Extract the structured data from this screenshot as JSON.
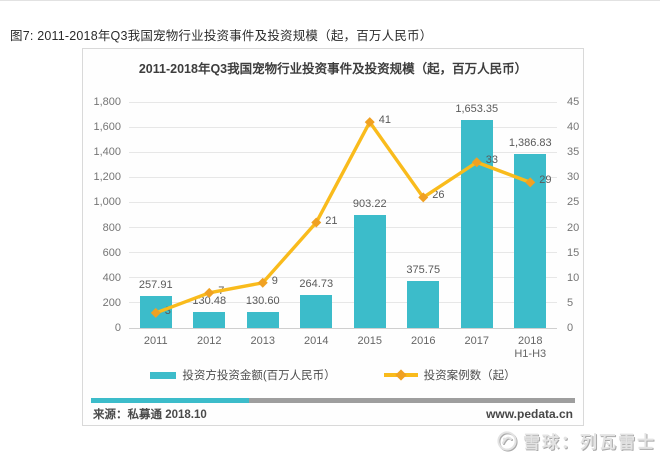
{
  "page": {
    "caption": "图7: 2011-2018年Q3我国宠物行业投资事件及投资规模（起，百万人民币）"
  },
  "footer": {
    "source": "来源：私募通 2018.10",
    "website": "www.pedata.cn"
  },
  "watermark": {
    "icon": "xueqiu-logo",
    "text": "雪球：列瓦雷士"
  },
  "chart_data": {
    "type": "combo-bar-line",
    "title": "2011-2018年Q3我国宠物行业投资事件及投资规模（起，百万人民币）",
    "categories": [
      "2011",
      "2012",
      "2013",
      "2014",
      "2015",
      "2016",
      "2017",
      "2018\nH1-H3"
    ],
    "series": [
      {
        "name": "投资方投资金额(百万人民币）",
        "type": "bar",
        "axis": "left",
        "color": "#3cbcca",
        "values": [
          257.91,
          130.48,
          130.6,
          264.73,
          903.22,
          375.75,
          1653.35,
          1386.83
        ],
        "labels": [
          "257.91",
          "130.48",
          "130.60",
          "264.73",
          "903.22",
          "375.75",
          "1,653.35",
          "1,386.83"
        ]
      },
      {
        "name": "投资案例数（起）",
        "type": "line",
        "axis": "right",
        "color": "#f9bb1c",
        "marker": "diamond",
        "marker_color": "#f0a122",
        "values": [
          3,
          7,
          9,
          21,
          41,
          26,
          33,
          29
        ],
        "labels": [
          "3",
          "7",
          "9",
          "21",
          "41",
          "26",
          "33",
          "29"
        ]
      }
    ],
    "left_axis": {
      "min": 0,
      "max": 1800,
      "step": 200,
      "ticks": [
        "0",
        "200",
        "400",
        "600",
        "800",
        "1,000",
        "1,200",
        "1,400",
        "1,600",
        "1,800"
      ]
    },
    "right_axis": {
      "min": 0,
      "max": 45,
      "step": 5,
      "ticks": [
        "0",
        "5",
        "10",
        "15",
        "20",
        "25",
        "30",
        "35",
        "40",
        "45"
      ]
    },
    "grid": true,
    "legend_position": "bottom",
    "divider_colors": {
      "teal": "#3cbcca",
      "gray": "#9e9e9e"
    }
  }
}
